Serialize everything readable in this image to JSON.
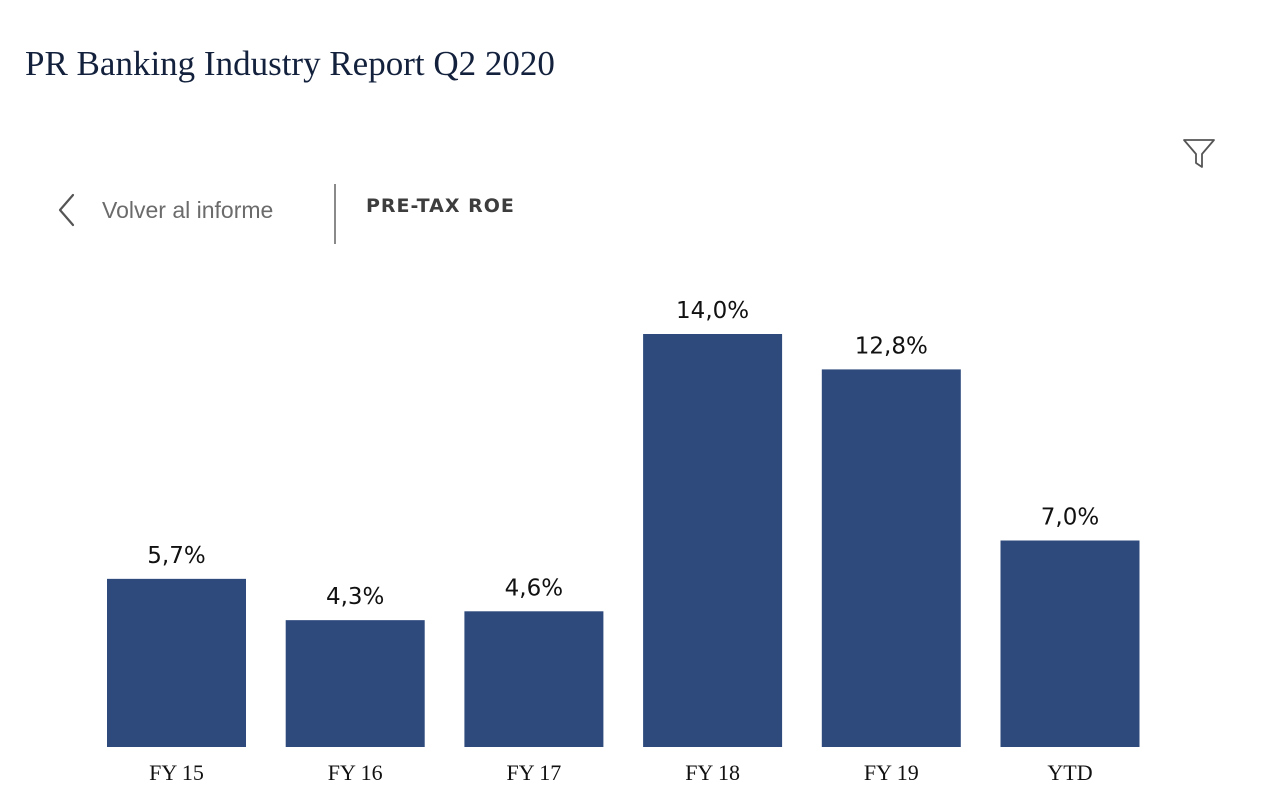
{
  "header": {
    "title": "PR Banking Industry Report Q2 2020"
  },
  "nav": {
    "back_label": "Volver al informe",
    "section_title": "PRE-TAX ROE"
  },
  "icons": {
    "back": "chevron-left-icon",
    "filter": "filter-icon"
  },
  "colors": {
    "bar": "#2e4a7d",
    "title": "#13213d"
  },
  "chart_data": {
    "type": "bar",
    "categories": [
      "FY 15",
      "FY 16",
      "FY 17",
      "FY 18",
      "FY 19",
      "YTD"
    ],
    "values": [
      5.7,
      4.3,
      4.6,
      14.0,
      12.8,
      7.0
    ],
    "value_labels": [
      "5,7%",
      "4,3%",
      "4,6%",
      "14,0%",
      "12,8%",
      "7,0%"
    ],
    "title": "",
    "xlabel": "",
    "ylabel": "",
    "ylim": [
      0,
      14.0
    ],
    "grid": false,
    "legend": "none"
  }
}
